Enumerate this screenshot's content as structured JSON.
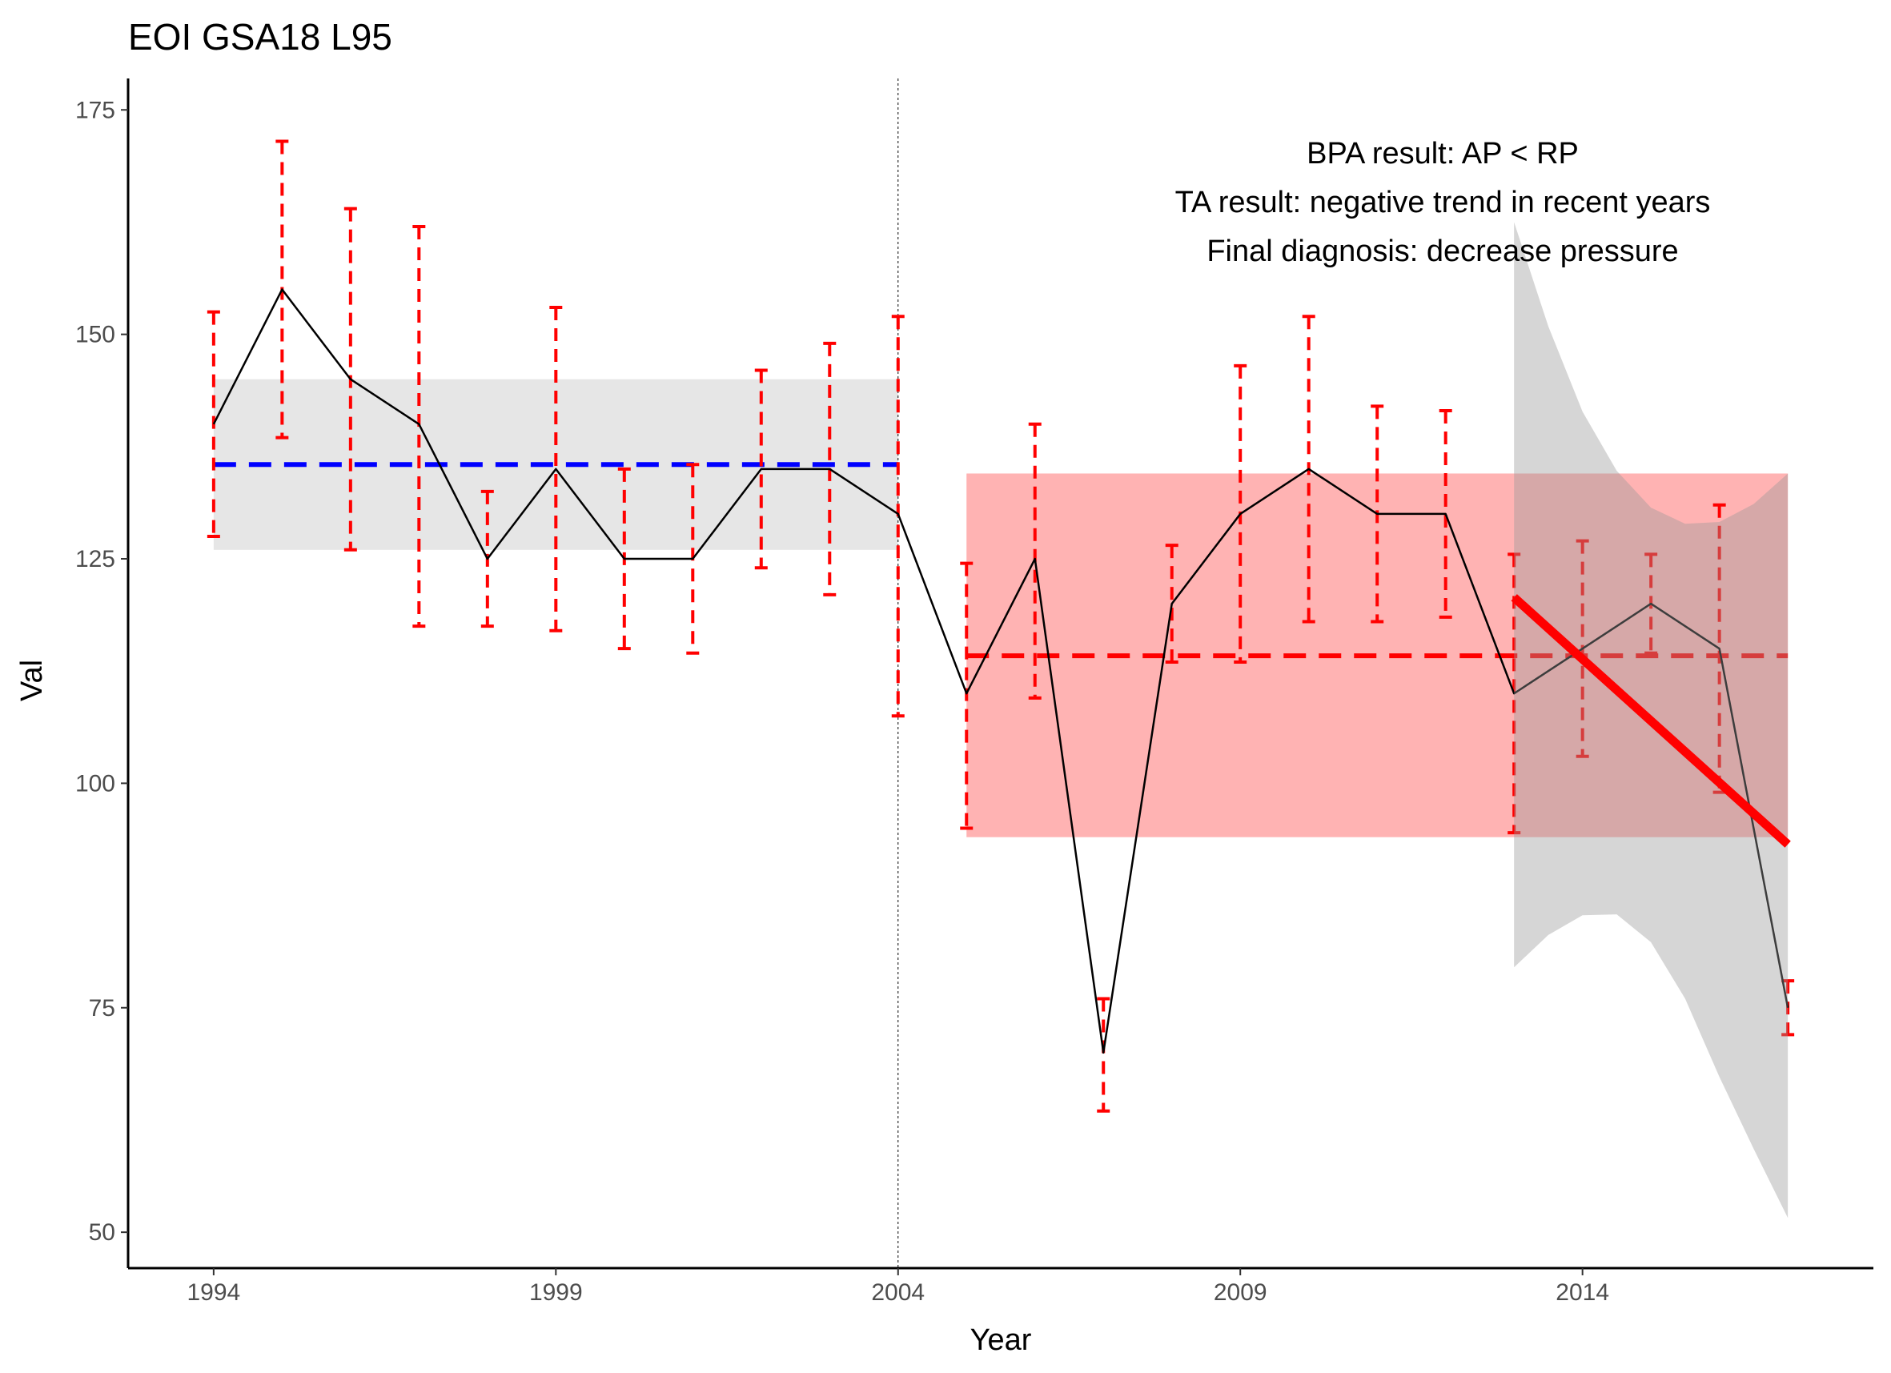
{
  "chart_data": {
    "type": "line",
    "title": "EOI GSA18 L95",
    "xlabel": "Year",
    "ylabel": "Val",
    "xlim": [
      1992.75,
      2018.25
    ],
    "ylim": [
      46.0,
      178.5
    ],
    "x_ticks": [
      "1994",
      "1999",
      "2004",
      "2009",
      "2014"
    ],
    "y_ticks": [
      "50",
      "75",
      "100",
      "125",
      "150",
      "175"
    ],
    "grid": false,
    "series": [
      {
        "x": [
          1994,
          1995,
          1996,
          1997,
          1998,
          1999,
          2000,
          2001,
          2002,
          2003,
          2004,
          2005,
          2006,
          2007,
          2008,
          2009,
          2010,
          2011,
          2012,
          2013,
          2014,
          2015,
          2016,
          2017
        ],
        "values": [
          140,
          155,
          145,
          140,
          125,
          135,
          125,
          125,
          135,
          135,
          130,
          110,
          125,
          70,
          120,
          130,
          135,
          130,
          130,
          110,
          115,
          120,
          115,
          75
        ],
        "error_lower": [
          127.5,
          138.5,
          126,
          117.5,
          117.5,
          117,
          115,
          114.5,
          124,
          121,
          107.5,
          95,
          109.5,
          63.5,
          113.5,
          113.5,
          118,
          118,
          118.5,
          94.5,
          103,
          114.5,
          99,
          72
        ],
        "error_upper": [
          152.5,
          171.5,
          164,
          162,
          132.5,
          153,
          135,
          135.5,
          146,
          149,
          152,
          124.5,
          140,
          76,
          126.5,
          146.5,
          152,
          142,
          141.5,
          125.5,
          127,
          125.5,
          131,
          78
        ]
      }
    ],
    "reference_period": {
      "x": [
        1994,
        2004
      ],
      "mean": 135.5,
      "band": [
        126,
        145
      ]
    },
    "assessment_period": {
      "x": [
        2005,
        2017
      ],
      "mean": 114.2,
      "band": [
        94,
        134.5
      ]
    },
    "split_year": 2004,
    "trend": {
      "x": [
        2013,
        2017
      ],
      "values": [
        120.7,
        93.2
      ]
    },
    "trend_ci_upper": [
      {
        "x": 2013.0,
        "y": 162.5
      },
      {
        "x": 2013.5,
        "y": 150.9
      },
      {
        "x": 2014.0,
        "y": 141.4
      },
      {
        "x": 2014.5,
        "y": 134.8
      },
      {
        "x": 2015.0,
        "y": 130.7
      },
      {
        "x": 2015.5,
        "y": 128.9
      },
      {
        "x": 2016.0,
        "y": 129.1
      },
      {
        "x": 2016.5,
        "y": 131.1
      },
      {
        "x": 2017.0,
        "y": 134.5
      }
    ],
    "trend_ci_lower": [
      {
        "x": 2013.0,
        "y": 79.5
      },
      {
        "x": 2013.5,
        "y": 83.1
      },
      {
        "x": 2014.0,
        "y": 85.3
      },
      {
        "x": 2014.5,
        "y": 85.4
      },
      {
        "x": 2015.0,
        "y": 82.3
      },
      {
        "x": 2015.5,
        "y": 76.0
      },
      {
        "x": 2016.0,
        "y": 67.3
      },
      {
        "x": 2016.5,
        "y": 59.3
      },
      {
        "x": 2017.0,
        "y": 51.6
      }
    ],
    "annotations": [
      "BPA result: AP < RP",
      "TA result: negative trend in recent years",
      "Final diagnosis: decrease pressure"
    ],
    "colors": {
      "line": "#000000",
      "error_bars": "#ff0000",
      "reference_mean": "#0000ff",
      "reference_band": "#e6e6e6",
      "assessment_mean": "#ff0000",
      "assessment_band": "#ffb3b3",
      "trend": "#ff0000",
      "trend_ci": "#999999"
    }
  }
}
